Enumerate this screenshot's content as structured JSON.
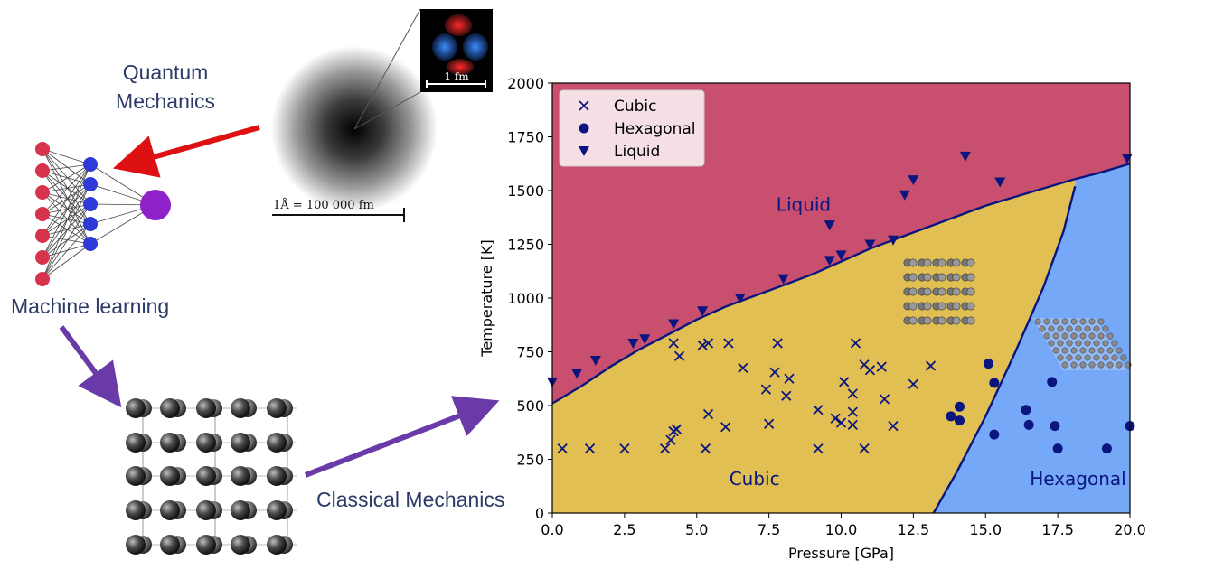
{
  "labels": {
    "quantum": [
      "Quantum",
      "Mechanics"
    ],
    "ml": "Machine learning",
    "classical": "Classical Mechanics",
    "scale_big": "1Å = 100 000 fm",
    "scale_small": "1 fm"
  },
  "colors": {
    "liquid": "#c84f6d",
    "cubic": "#e2bf52",
    "hexagonal": "#76a8f8",
    "marker": "#0b1580",
    "arrow_red": "#dd1111",
    "arrow_purple": "#6a3aa8",
    "nn_input": "#d8334c",
    "nn_hidden": "#2e3ad8",
    "nn_output": "#8e22c8"
  },
  "chart_data": {
    "type": "scatter",
    "xlabel": "Pressure [GPa]",
    "ylabel": "Temperature [K]",
    "xlim": [
      0,
      20
    ],
    "ylim": [
      0,
      2000
    ],
    "xticks": [
      "0.0",
      "2.5",
      "5.0",
      "7.5",
      "10.0",
      "12.5",
      "15.0",
      "17.5",
      "20.0"
    ],
    "yticks": [
      "0",
      "250",
      "500",
      "750",
      "1000",
      "1250",
      "1500",
      "1750",
      "2000"
    ],
    "legend": {
      "position": "top-left",
      "entries": [
        "Cubic",
        "Hexagonal",
        "Liquid"
      ]
    },
    "regions": [
      {
        "name": "Liquid",
        "label_at": [
          8.7,
          1405
        ]
      },
      {
        "name": "Cubic",
        "label_at": [
          7.0,
          130
        ]
      },
      {
        "name": "Hexagonal",
        "label_at": [
          18.2,
          130
        ]
      }
    ],
    "boundaries": {
      "melting_curve": [
        [
          0,
          510
        ],
        [
          1,
          590
        ],
        [
          2,
          680
        ],
        [
          3,
          760
        ],
        [
          4,
          830
        ],
        [
          5,
          900
        ],
        [
          6,
          960
        ],
        [
          7,
          1010
        ],
        [
          8,
          1060
        ],
        [
          9,
          1110
        ],
        [
          10,
          1170
        ],
        [
          11,
          1230
        ],
        [
          12,
          1280
        ],
        [
          13,
          1330
        ],
        [
          14,
          1380
        ],
        [
          15,
          1430
        ],
        [
          16,
          1470
        ],
        [
          17,
          1510
        ],
        [
          18,
          1550
        ],
        [
          19,
          1585
        ],
        [
          20,
          1625
        ]
      ],
      "cubic_hex_curve": [
        [
          13.2,
          0
        ],
        [
          14.0,
          190
        ],
        [
          15.0,
          450
        ],
        [
          16.0,
          740
        ],
        [
          17.0,
          1050
        ],
        [
          17.7,
          1310
        ],
        [
          18.1,
          1520
        ]
      ]
    },
    "series": [
      {
        "name": "Cubic",
        "marker": "x",
        "points": [
          [
            0.35,
            300
          ],
          [
            1.3,
            300
          ],
          [
            2.5,
            300
          ],
          [
            3.9,
            300
          ],
          [
            5.3,
            300
          ],
          [
            9.2,
            300
          ],
          [
            10.8,
            300
          ],
          [
            4.1,
            340
          ],
          [
            4.2,
            380
          ],
          [
            4.3,
            390
          ],
          [
            6.0,
            400
          ],
          [
            7.5,
            415
          ],
          [
            10.0,
            420
          ],
          [
            10.4,
            410
          ],
          [
            11.8,
            405
          ],
          [
            5.4,
            460
          ],
          [
            9.2,
            480
          ],
          [
            9.8,
            440
          ],
          [
            10.4,
            470
          ],
          [
            7.4,
            575
          ],
          [
            8.1,
            545
          ],
          [
            10.4,
            555
          ],
          [
            11.5,
            530
          ],
          [
            7.7,
            655
          ],
          [
            8.2,
            625
          ],
          [
            10.1,
            610
          ],
          [
            12.5,
            600
          ],
          [
            6.6,
            675
          ],
          [
            10.8,
            690
          ],
          [
            11.0,
            665
          ],
          [
            11.4,
            680
          ],
          [
            13.1,
            685
          ],
          [
            4.4,
            730
          ],
          [
            5.2,
            780
          ],
          [
            5.4,
            790
          ],
          [
            6.1,
            790
          ],
          [
            7.8,
            790
          ],
          [
            4.2,
            790
          ],
          [
            10.5,
            790
          ]
        ]
      },
      {
        "name": "Hexagonal",
        "marker": "o",
        "points": [
          [
            13.8,
            450
          ],
          [
            14.1,
            430
          ],
          [
            14.1,
            495
          ],
          [
            15.1,
            695
          ],
          [
            15.3,
            605
          ],
          [
            15.3,
            365
          ],
          [
            16.4,
            480
          ],
          [
            16.5,
            410
          ],
          [
            17.3,
            610
          ],
          [
            17.4,
            405
          ],
          [
            17.5,
            300
          ],
          [
            19.2,
            300
          ],
          [
            20.0,
            405
          ]
        ]
      },
      {
        "name": "Liquid",
        "marker": "v",
        "points": [
          [
            0.0,
            610
          ],
          [
            0.85,
            650
          ],
          [
            1.5,
            710
          ],
          [
            2.8,
            790
          ],
          [
            3.2,
            810
          ],
          [
            4.2,
            880
          ],
          [
            5.2,
            940
          ],
          [
            6.5,
            1000
          ],
          [
            8.0,
            1090
          ],
          [
            9.6,
            1175
          ],
          [
            10.0,
            1200
          ],
          [
            11.0,
            1250
          ],
          [
            11.8,
            1270
          ],
          [
            12.2,
            1480
          ],
          [
            12.5,
            1550
          ],
          [
            14.3,
            1660
          ],
          [
            15.5,
            1540
          ],
          [
            19.9,
            1650
          ],
          [
            9.6,
            1340
          ]
        ]
      }
    ]
  }
}
